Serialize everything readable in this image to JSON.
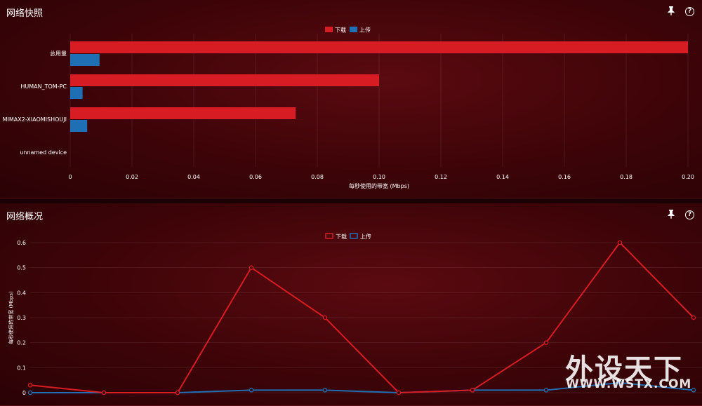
{
  "snapshot": {
    "title": "网络快照",
    "icons": {
      "pin": "pin-icon",
      "help": "help-icon"
    },
    "help_glyph": "?",
    "pin_glyph": "📌"
  },
  "overview": {
    "title": "网络概况",
    "icons": {
      "pin": "pin-icon",
      "help": "help-icon"
    },
    "help_glyph": "?",
    "pin_glyph": "📌"
  },
  "colors": {
    "download": "#d81c23",
    "upload": "#1f6fb4"
  },
  "watermark": {
    "text": "外设天下",
    "url": "WWW.WSTX.COM"
  },
  "chart_data": [
    {
      "type": "bar",
      "orientation": "horizontal",
      "categories": [
        "总用量",
        "HUMAN_TOM-PC",
        "MIMAX2-XIAOMISHOUJI",
        "unnamed device"
      ],
      "series": [
        {
          "name": "下载",
          "values": [
            0.2,
            0.1,
            0.073,
            0
          ]
        },
        {
          "name": "上传",
          "values": [
            0.0095,
            0.004,
            0.0055,
            0
          ]
        }
      ],
      "xlabel": "每秒使用的带宽 (Mbps)",
      "xlim": [
        0,
        0.2
      ],
      "xticks": [
        "0",
        "0.02",
        "0.04",
        "0.06",
        "0.08",
        "0.10",
        "0.12",
        "0.14",
        "0.16",
        "0.18",
        "0.20"
      ],
      "legend": "top-center"
    },
    {
      "type": "line",
      "x": [
        0,
        1,
        2,
        3,
        4,
        5,
        6,
        7,
        8,
        9
      ],
      "series": [
        {
          "name": "下载",
          "values": [
            0.03,
            0,
            0,
            0.5,
            0.3,
            0,
            0.01,
            0.2,
            0.6,
            0.3
          ]
        },
        {
          "name": "上传",
          "values": [
            0,
            0,
            0,
            0.01,
            0.01,
            0,
            0.01,
            0.01,
            0.04,
            0.01
          ]
        }
      ],
      "ylabel": "每秒使用的带宽 (Mbps)",
      "ylim": [
        0,
        0.6
      ],
      "yticks": [
        "0",
        "0.1",
        "0.2",
        "0.3",
        "0.4",
        "0.5",
        "0.6"
      ],
      "legend": "top-center"
    }
  ]
}
